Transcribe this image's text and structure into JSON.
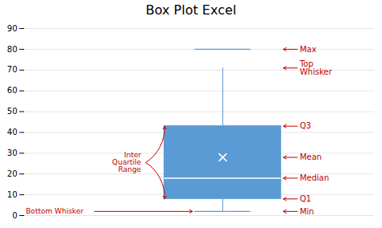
{
  "chart_data": {
    "type": "box",
    "title": "Box Plot Excel",
    "values": {
      "min": 2,
      "q1": 8,
      "median": 18,
      "mean": 28,
      "q3": 43,
      "top_whisker": 71,
      "max": 80
    },
    "color": "#5B9BD5",
    "ylim": [
      0,
      90
    ],
    "yticks": [
      0,
      10,
      20,
      30,
      40,
      50,
      60,
      70,
      80,
      90
    ],
    "grid": true,
    "tick_labels": "y",
    "annotations": [
      {
        "text": "Max",
        "y": 80,
        "color": "#C00000"
      },
      {
        "text": "Top\nWhisker",
        "y": 71,
        "color": "#C00000"
      },
      {
        "text": "Q3",
        "y": 43,
        "color": "#C00000"
      },
      {
        "text": "Mean",
        "y": 28,
        "color": "#C00000"
      },
      {
        "text": "Median",
        "y": 18,
        "color": "#C00000"
      },
      {
        "text": "Q1",
        "y": 8,
        "color": "#C00000"
      },
      {
        "text": "Min",
        "y": 2,
        "color": "#C00000"
      }
    ],
    "left_annotations": [
      {
        "text": "Inter\nQuartile\nRange",
        "y": [
          8,
          43
        ],
        "color": "#C00000"
      },
      {
        "text": "Bottom Whisker",
        "y": 2,
        "color": "#C00000"
      }
    ]
  }
}
